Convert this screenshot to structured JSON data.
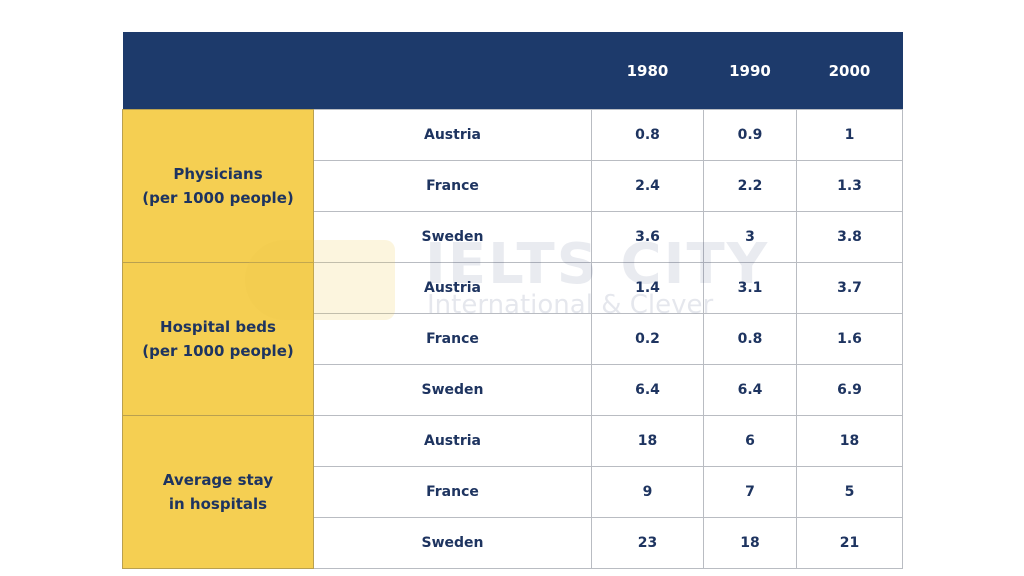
{
  "chart_data": {
    "type": "table",
    "title": "",
    "columns": [
      "",
      "",
      "1980",
      "1990",
      "2000"
    ],
    "years": [
      "1980",
      "1990",
      "2000"
    ],
    "groups": [
      {
        "label_line1": "Physicians",
        "label_line2": "(per 1000 people)",
        "rows": [
          {
            "country": "Austria",
            "values": [
              "0.8",
              "0.9",
              "1"
            ]
          },
          {
            "country": "France",
            "values": [
              "2.4",
              "2.2",
              "1.3"
            ]
          },
          {
            "country": "Sweden",
            "values": [
              "3.6",
              "3",
              "3.8"
            ]
          }
        ]
      },
      {
        "label_line1": "Hospital beds",
        "label_line2": "(per 1000 people)",
        "rows": [
          {
            "country": "Austria",
            "values": [
              "1.4",
              "3.1",
              "3.7"
            ]
          },
          {
            "country": "France",
            "values": [
              "0.2",
              "0.8",
              "1.6"
            ]
          },
          {
            "country": "Sweden",
            "values": [
              "6.4",
              "6.4",
              "6.9"
            ]
          }
        ]
      },
      {
        "label_line1": "Average stay",
        "label_line2": "in hospitals",
        "rows": [
          {
            "country": "Austria",
            "values": [
              "18",
              "6",
              "18"
            ]
          },
          {
            "country": "France",
            "values": [
              "9",
              "7",
              "5"
            ]
          },
          {
            "country": "Sweden",
            "values": [
              "23",
              "18",
              "21"
            ]
          }
        ]
      }
    ]
  },
  "watermark": {
    "line1": "IELTS CITY",
    "line2": "International & Clever"
  },
  "colors": {
    "header_bg": "#1d3a6b",
    "group_bg": "#f5cf52",
    "text": "#1e3460",
    "border": "#b9bcc2"
  }
}
